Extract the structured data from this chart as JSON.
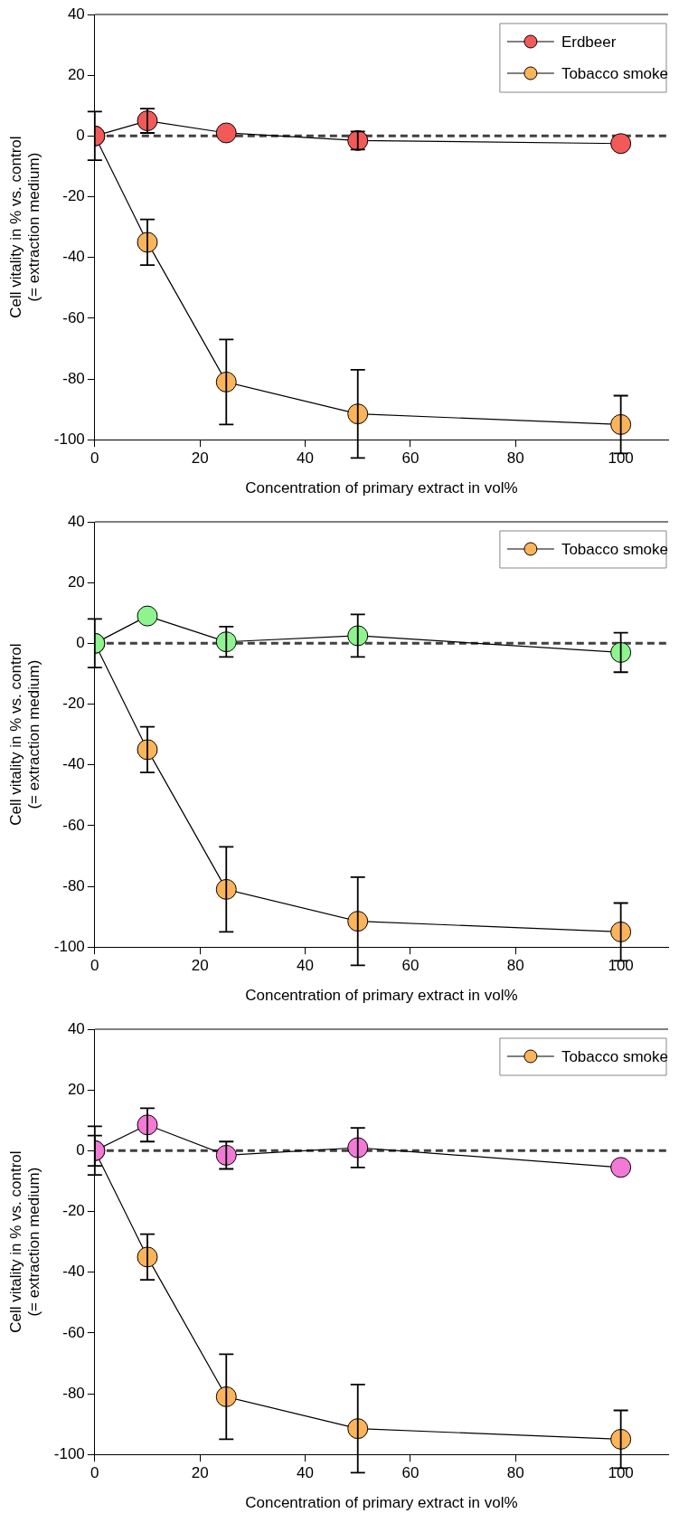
{
  "chart_data": [
    {
      "type": "line",
      "xlabel": "Concentration of primary extract in vol%",
      "ylabel": "Cell vitality in % vs. control\n(= extraction medium)",
      "x": [
        0,
        10,
        25,
        50,
        100
      ],
      "xlim": [
        0,
        109
      ],
      "ylim": [
        -100,
        40
      ],
      "xticks": [
        0,
        20,
        40,
        60,
        80,
        100
      ],
      "yticks": [
        -100,
        -80,
        -60,
        -40,
        -20,
        0,
        20,
        40
      ],
      "grid": false,
      "legend": "top right",
      "marker": "circle",
      "line_style": "solid",
      "ref_lines": [
        {
          "axis": "y",
          "value": 0,
          "line_style": "dashed",
          "color": "#404040"
        }
      ],
      "series": [
        {
          "name": "Erdbeer",
          "color": "#f25a5a",
          "values": [
            0,
            5,
            1,
            -1.5,
            -2.5
          ],
          "errors": [
            null,
            4,
            null,
            3,
            null
          ]
        },
        {
          "name": "Tobacco smoke",
          "color": "#fcb45a",
          "values": [
            0,
            -35,
            -81,
            -91.5,
            -95
          ],
          "errors": [
            8,
            7.5,
            14,
            14.5,
            9.5
          ]
        }
      ]
    },
    {
      "type": "line",
      "xlabel": "Concentration of primary extract in vol%",
      "ylabel": "Cell vitality in % vs. control\n(= extraction medium)",
      "x": [
        0,
        10,
        25,
        50,
        100
      ],
      "xlim": [
        0,
        109
      ],
      "ylim": [
        -100,
        40
      ],
      "xticks": [
        0,
        20,
        40,
        60,
        80,
        100
      ],
      "yticks": [
        -100,
        -80,
        -60,
        -40,
        -20,
        0,
        20,
        40
      ],
      "grid": false,
      "legend": "top right",
      "marker": "circle",
      "line_style": "solid",
      "ref_lines": [
        {
          "axis": "y",
          "value": 0,
          "line_style": "dashed",
          "color": "#404040"
        }
      ],
      "series": [
        {
          "color": "#8ef58e",
          "values": [
            0,
            9,
            0.5,
            2.5,
            -3
          ],
          "errors": [
            null,
            null,
            5,
            7,
            6.5
          ]
        },
        {
          "name": "Tobacco smoke",
          "color": "#fcb45a",
          "values": [
            0,
            -35,
            -81,
            -91.5,
            -95
          ],
          "errors": [
            8,
            7.5,
            14,
            14.5,
            9.5
          ]
        }
      ]
    },
    {
      "type": "line",
      "xlabel": "Concentration of primary extract in vol%",
      "ylabel": "Cell vitality in % vs. control\n(= extraction medium)",
      "x": [
        0,
        10,
        25,
        50,
        100
      ],
      "xlim": [
        0,
        109
      ],
      "ylim": [
        -100,
        40
      ],
      "xticks": [
        0,
        20,
        40,
        60,
        80,
        100
      ],
      "yticks": [
        -100,
        -80,
        -60,
        -40,
        -20,
        0,
        20,
        40
      ],
      "grid": false,
      "legend": "top right",
      "marker": "circle",
      "line_style": "solid",
      "ref_lines": [
        {
          "axis": "y",
          "value": 0,
          "line_style": "dashed",
          "color": "#404040"
        }
      ],
      "series": [
        {
          "color": "#f27ad6",
          "values": [
            0,
            8.5,
            -1.5,
            1,
            -5.5
          ],
          "errors": [
            5,
            5.5,
            4.5,
            6.5,
            null
          ]
        },
        {
          "name": "Tobacco smoke",
          "color": "#fcb45a",
          "values": [
            0,
            -35,
            -81,
            -91.5,
            -95
          ],
          "errors": [
            8,
            7.5,
            14,
            14.5,
            9.5
          ]
        }
      ]
    }
  ]
}
